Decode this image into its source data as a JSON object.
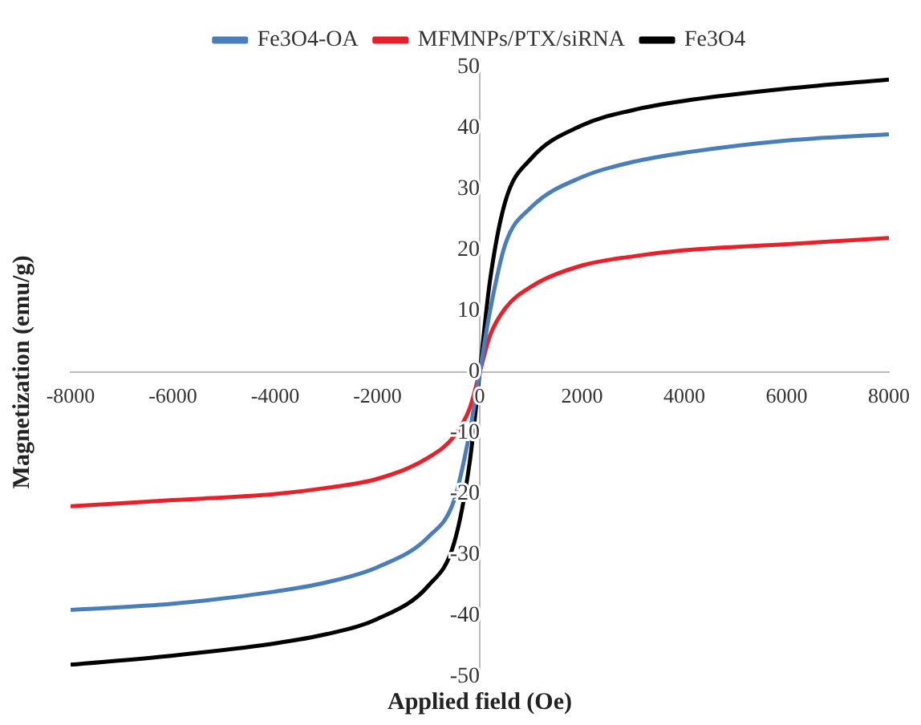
{
  "chart_data": {
    "type": "line",
    "xlabel": "Applied field (Oe)",
    "ylabel": "Magnetization (emu/g)",
    "legend": "top",
    "grid": false,
    "marker": "none",
    "line_style": "solid",
    "xlim": [
      -8000,
      8000
    ],
    "xticks": [
      -8000,
      -6000,
      -4000,
      -2000,
      0,
      2000,
      4000,
      6000,
      8000
    ],
    "ylim": [
      -50,
      50
    ],
    "yticks": [
      -50,
      -40,
      -30,
      -20,
      -10,
      0,
      10,
      20,
      30,
      40,
      50
    ],
    "x": [
      -8000,
      -6000,
      -4000,
      -3000,
      -2000,
      -1000,
      -500,
      -200,
      0,
      200,
      500,
      1000,
      2000,
      3000,
      4000,
      6000,
      8000
    ],
    "series": [
      {
        "name": "Fe3O4-OA",
        "color": "#4a7ebb",
        "values": [
          -39,
          -38,
          -36,
          -34.5,
          -32,
          -27,
          -21,
          -10,
          0,
          10,
          21,
          27,
          32,
          34.5,
          36,
          38,
          39
        ]
      },
      {
        "name": "MFMNPs/PTX/siRNA",
        "color": "#e8202a",
        "values": [
          -22,
          -21,
          -20,
          -19,
          -17.5,
          -14,
          -10.5,
          -6,
          0,
          6,
          10.5,
          14,
          17.5,
          19,
          20,
          21,
          22
        ]
      },
      {
        "name": "Fe3O4",
        "color": "#000000",
        "values": [
          -48,
          -46.5,
          -44.5,
          -43,
          -40.5,
          -35,
          -28,
          -15,
          0,
          15,
          28,
          35,
          40.5,
          43,
          44.5,
          46.5,
          48
        ]
      }
    ]
  }
}
